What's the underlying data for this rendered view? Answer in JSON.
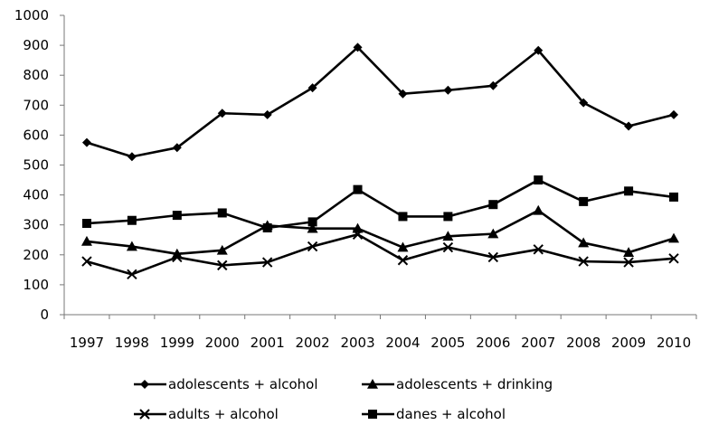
{
  "chart_data": {
    "type": "line",
    "title": "",
    "xlabel": "",
    "ylabel": "",
    "ylim": [
      0,
      1000
    ],
    "yticks": [
      "0",
      "100",
      "200",
      "300",
      "400",
      "500",
      "600",
      "700",
      "800",
      "900",
      "1000"
    ],
    "categories": [
      "1997",
      "1998",
      "1999",
      "2000",
      "2001",
      "2002",
      "2003",
      "2004",
      "2005",
      "2006",
      "2007",
      "2008",
      "2009",
      "2010"
    ],
    "grid": false,
    "legend_position": "bottom",
    "series": [
      {
        "name": "adolescents + alcohol",
        "marker": "diamond",
        "values": [
          575,
          528,
          558,
          673,
          668,
          758,
          893,
          738,
          750,
          765,
          883,
          708,
          630,
          668
        ]
      },
      {
        "name": "adolescents + drinking",
        "marker": "triangle",
        "values": [
          245,
          228,
          203,
          215,
          298,
          288,
          288,
          225,
          262,
          270,
          348,
          240,
          208,
          255
        ]
      },
      {
        "name": "adults + alcohol",
        "marker": "x",
        "values": [
          178,
          135,
          192,
          165,
          175,
          228,
          268,
          182,
          225,
          192,
          218,
          178,
          175,
          188
        ]
      },
      {
        "name": "danes + alcohol",
        "marker": "square",
        "values": [
          305,
          315,
          332,
          340,
          290,
          310,
          418,
          328,
          328,
          368,
          450,
          378,
          413,
          393
        ]
      }
    ]
  }
}
